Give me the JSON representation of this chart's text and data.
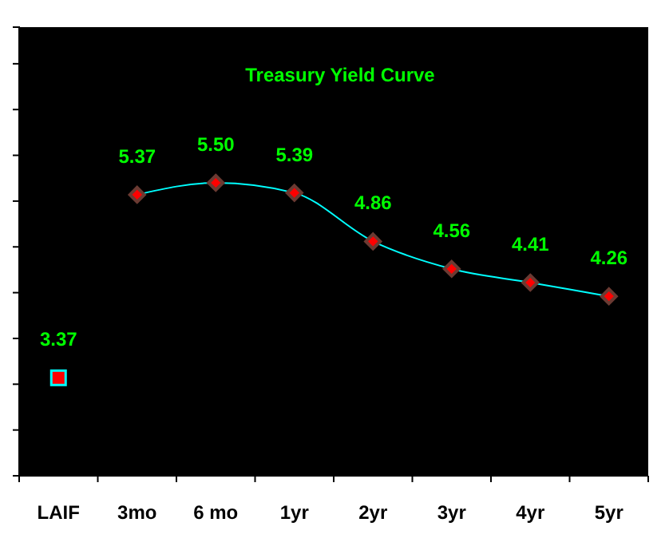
{
  "chart_data": {
    "type": "line",
    "title": "Treasury Yield Curve",
    "categories": [
      "LAIF",
      "3mo",
      "6 mo",
      "1yr",
      "2yr",
      "3yr",
      "4yr",
      "5yr"
    ],
    "series": [
      {
        "type": "scatter",
        "color": "#ff0000",
        "marker": "square",
        "values": [
          3.37,
          null,
          null,
          null,
          null,
          null,
          null,
          null
        ],
        "value_labels": [
          "3.37",
          null,
          null,
          null,
          null,
          null,
          null,
          null
        ]
      },
      {
        "color": "#00ffff",
        "marker": "diamond",
        "line_style": "solid",
        "values": [
          null,
          5.37,
          5.5,
          5.39,
          4.86,
          4.56,
          4.41,
          4.26
        ],
        "value_labels": [
          null,
          "5.37",
          "5.50",
          "5.39",
          "4.86",
          "4.56",
          "4.41",
          "4.26"
        ]
      }
    ],
    "ylim": [
      2.3,
      7.2
    ],
    "yticks": [
      {
        "value": 2.8,
        "label": null
      },
      {
        "value": 3.3,
        "label": null
      },
      {
        "value": 3.8,
        "label": null
      },
      {
        "value": 4.3,
        "label": null
      },
      {
        "value": 4.8,
        "label": null
      },
      {
        "value": 5.3,
        "label": null
      },
      {
        "value": 5.8,
        "label": null
      },
      {
        "value": 6.3,
        "label": null
      },
      {
        "value": 6.8,
        "label": null
      }
    ],
    "tick_labels": "x",
    "grid": false
  }
}
